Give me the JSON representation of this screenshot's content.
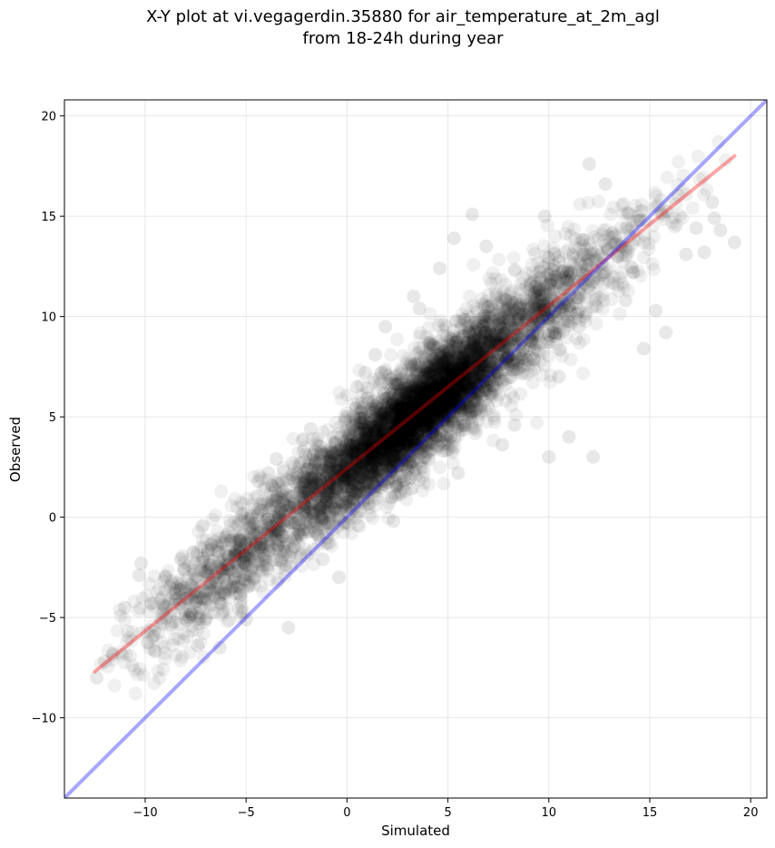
{
  "chart_data": {
    "type": "scatter",
    "title_line1": "X-Y plot at vi.vegagerdin.35880 for air_temperature_at_2m_agl",
    "title_line2": "from 18-24h during year",
    "xlabel": "Simulated",
    "ylabel": "Observed",
    "xlim": [
      -14,
      20.8
    ],
    "ylim": [
      -14,
      20.8
    ],
    "xticks": [
      -10,
      -5,
      0,
      5,
      10,
      15,
      20
    ],
    "yticks": [
      -10,
      -5,
      0,
      5,
      10,
      15,
      20
    ],
    "xtick_labels": [
      "−10",
      "−5",
      "0",
      "5",
      "10",
      "15",
      "20"
    ],
    "ytick_labels": [
      "−10",
      "−5",
      "0",
      "5",
      "10",
      "15",
      "20"
    ],
    "grid": true,
    "point_color": "#000000",
    "point_opacity": 0.06,
    "scatter_summary": {
      "approx_points": 6000,
      "x_range": [
        -12.4,
        19.2
      ],
      "center_trend": {
        "slope": 0.81,
        "intercept": 2.4
      },
      "spread_sd": 1.3
    },
    "visible_points": [
      [
        -12.4,
        -8.0
      ],
      [
        -12.0,
        -7.2
      ],
      [
        -11.6,
        -6.8
      ],
      [
        -11.0,
        -4.5
      ],
      [
        -10.3,
        -2.9
      ],
      [
        -10.2,
        -2.3
      ],
      [
        -9.7,
        -4.3
      ],
      [
        -9.5,
        -6.7
      ],
      [
        -8.5,
        -3.8
      ],
      [
        -7.4,
        -6.4
      ],
      [
        -6.3,
        -6.5
      ],
      [
        -5.0,
        -5.1
      ],
      [
        -4.4,
        1.8
      ],
      [
        -3.9,
        2.2
      ],
      [
        -3.5,
        2.9
      ],
      [
        -2.9,
        -5.5
      ],
      [
        -2.7,
        2.7
      ],
      [
        -1.8,
        4.4
      ],
      [
        -1.2,
        -2.1
      ],
      [
        -0.4,
        -3.0
      ],
      [
        0.5,
        6.5
      ],
      [
        0.9,
        7.2
      ],
      [
        1.4,
        8.1
      ],
      [
        1.9,
        9.5
      ],
      [
        2.3,
        -0.2
      ],
      [
        3.3,
        11.0
      ],
      [
        3.6,
        10.4
      ],
      [
        4.6,
        12.4
      ],
      [
        5.3,
        13.9
      ],
      [
        5.5,
        2.2
      ],
      [
        6.2,
        15.1
      ],
      [
        6.9,
        13.5
      ],
      [
        7.7,
        3.6
      ],
      [
        8.3,
        4.6
      ],
      [
        9.8,
        15.0
      ],
      [
        10.0,
        3.0
      ],
      [
        10.5,
        7.0
      ],
      [
        11.0,
        4.0
      ],
      [
        11.5,
        9.5
      ],
      [
        12.0,
        17.6
      ],
      [
        12.2,
        3.0
      ],
      [
        12.8,
        16.6
      ],
      [
        13.4,
        13.0
      ],
      [
        13.8,
        10.8
      ],
      [
        14.2,
        12.2
      ],
      [
        14.5,
        14.8
      ],
      [
        14.7,
        8.4
      ],
      [
        15.3,
        10.3
      ],
      [
        15.8,
        9.2
      ],
      [
        16.8,
        13.1
      ],
      [
        17.3,
        14.4
      ],
      [
        17.7,
        13.2
      ],
      [
        18.1,
        15.7
      ],
      [
        18.2,
        14.9
      ],
      [
        18.5,
        14.3
      ],
      [
        19.2,
        13.7
      ]
    ],
    "series": [
      {
        "type": "line",
        "color": "#ff0000",
        "opacity": 0.35,
        "x": [
          -12.5,
          19.2
        ],
        "y": [
          -7.7,
          18.0
        ]
      },
      {
        "type": "line",
        "color": "#0000ff",
        "opacity": 0.35,
        "x": [
          -14,
          20.8
        ],
        "y": [
          -14,
          20.8
        ]
      }
    ]
  }
}
